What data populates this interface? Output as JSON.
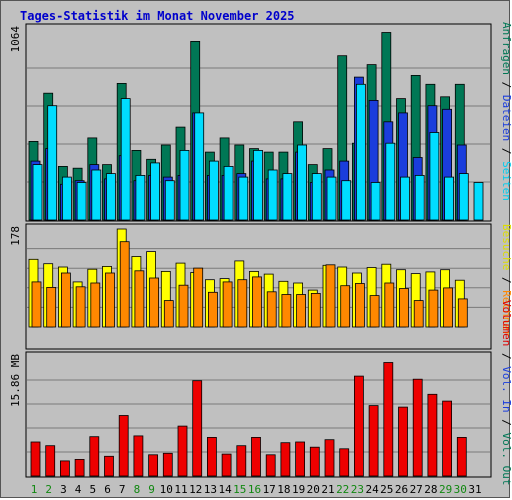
{
  "title": "Tages-Statistik im Monat November 2025",
  "colors": {
    "hits": "#007755",
    "files": "#1a3ddc",
    "pages": "#00ddff",
    "visits": "#ffff00",
    "sites": "#ff8800",
    "volume": "#ee0000",
    "weekend_day": "#118811",
    "weekday_day": "#000000"
  },
  "legend": {
    "top": [
      {
        "text": "Anfragen",
        "color": "#007755"
      },
      {
        "text": " / ",
        "color": "#000000"
      },
      {
        "text": "Dateien",
        "color": "#1a3ddc"
      },
      {
        "text": " / ",
        "color": "#000000"
      },
      {
        "text": "Seiten",
        "color": "#00ccee"
      }
    ],
    "mid": [
      {
        "text": "Besuche",
        "color": "#dddd00"
      },
      {
        "text": " / ",
        "color": "#000000"
      },
      {
        "text": "Rechner",
        "color": "#ff8800"
      }
    ],
    "bottom": [
      {
        "text": "Volumen",
        "color": "#dd0000"
      },
      {
        "text": " / ",
        "color": "#000000"
      },
      {
        "text": "Vol. In",
        "color": "#1a3ddc"
      },
      {
        "text": " / ",
        "color": "#000000"
      },
      {
        "text": "Vol. Out",
        "color": "#007755"
      }
    ]
  },
  "chart_data": {
    "type": "bar",
    "title": "Tages-Statistik im Monat November 2025",
    "days": [
      "1",
      "2",
      "3",
      "4",
      "5",
      "6",
      "7",
      "8",
      "9",
      "10",
      "11",
      "12",
      "13",
      "14",
      "15",
      "16",
      "17",
      "18",
      "19",
      "20",
      "21",
      "22",
      "23",
      "24",
      "25",
      "26",
      "27",
      "28",
      "29",
      "30",
      "31"
    ],
    "weekend_days": [
      "1",
      "2",
      "8",
      "9",
      "15",
      "16",
      "22",
      "23",
      "29",
      "30"
    ],
    "panels": [
      {
        "name": "requests",
        "max_label": "1064",
        "ymax": 1064,
        "series": [
          {
            "name": "Anfragen",
            "values": [
              440,
              710,
              300,
              290,
              460,
              310,
              765,
              390,
              340,
              420,
              520,
              1000,
              380,
              460,
              420,
              400,
              380,
              380,
              550,
              310,
              400,
              920,
              430,
              870,
              1050,
              680,
              810,
              760,
              690,
              760,
              0
            ]
          },
          {
            "name": "Dateien",
            "values": [
              330,
              400,
              200,
              220,
              310,
              230,
              360,
              220,
              250,
              240,
              250,
              600,
              250,
              250,
              260,
              330,
              230,
              230,
              380,
              210,
              280,
              330,
              800,
              670,
              550,
              600,
              350,
              640,
              620,
              420,
              0
            ]
          },
          {
            "name": "Seiten",
            "values": [
              310,
              640,
              240,
              210,
              280,
              260,
              680,
              250,
              320,
              220,
              390,
              600,
              330,
              300,
              240,
              390,
              280,
              260,
              420,
              260,
              240,
              220,
              760,
              210,
              430,
              240,
              250,
              490,
              240,
              260,
              210
            ]
          }
        ]
      },
      {
        "name": "visits",
        "max_label": "178",
        "ymax": 178,
        "series": [
          {
            "name": "Besuche",
            "values": [
              123,
              115,
              109,
              82,
              105,
              110,
              178,
              128,
              137,
              101,
              116,
              99,
              86,
              88,
              120,
              101,
              96,
              83,
              80,
              67,
              112,
              109,
              98,
              108,
              114,
              104,
              97,
              100,
              104,
              85,
              0
            ]
          },
          {
            "name": "Rechner",
            "values": [
              82,
              72,
              98,
              73,
              80,
              98,
              155,
              102,
              89,
              48,
              76,
              107,
              63,
              82,
              86,
              91,
              64,
              59,
              59,
              61,
              113,
              75,
              79,
              57,
              80,
              70,
              48,
              67,
              71,
              51,
              0
            ]
          }
        ]
      },
      {
        "name": "volume",
        "max_label": "15.86 MB",
        "ymax": 15.86,
        "series": [
          {
            "name": "Volumen",
            "values": [
              4.5,
              4.0,
              2.0,
              2.2,
              5.2,
              2.6,
              8.0,
              5.3,
              2.8,
              3.0,
              6.6,
              12.6,
              5.1,
              2.9,
              4.0,
              5.1,
              2.8,
              4.4,
              4.5,
              3.8,
              4.8,
              3.6,
              13.2,
              9.3,
              15.0,
              9.1,
              12.8,
              10.8,
              9.9,
              5.1,
              0
            ]
          }
        ]
      }
    ]
  }
}
